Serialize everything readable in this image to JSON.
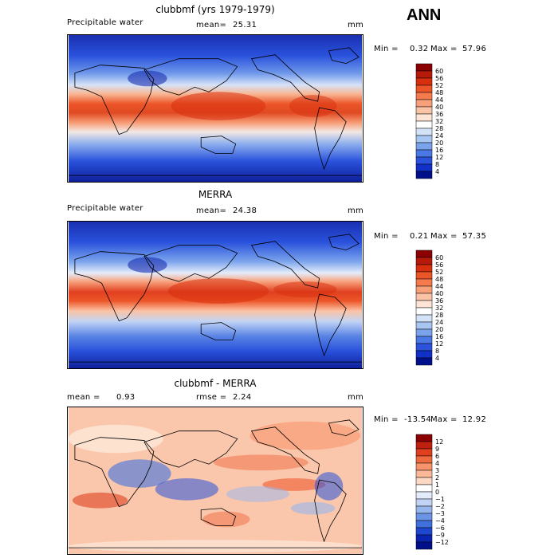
{
  "season": "ANN",
  "panels": [
    {
      "title": "clubbmf (yrs 1979-1979)",
      "left_label": "Precipitable water",
      "mean_label": "mean=",
      "mean_value": "25.31",
      "units": "mm",
      "min_label": "Min =",
      "min_value": "0.32",
      "max_label": "Max =",
      "max_value": "57.96",
      "kind": "abs"
    },
    {
      "title": "MERRA",
      "left_label": "Precipitable water",
      "mean_label": "mean=",
      "mean_value": "24.38",
      "units": "mm",
      "min_label": "Min =",
      "min_value": "0.21",
      "max_label": "Max =",
      "max_value": "57.35",
      "kind": "abs"
    },
    {
      "title": "clubbmf - MERRA",
      "left_label": "mean =",
      "mean_label": "rmse =",
      "mean_value": "2.24",
      "left_value": "0.93",
      "units": "mm",
      "min_label": "Min =",
      "min_value": "-13.54",
      "max_label": "Max =",
      "max_value": "12.92",
      "kind": "diff"
    }
  ],
  "colorbars": {
    "abs": {
      "levels": [
        "60",
        "56",
        "52",
        "48",
        "44",
        "40",
        "36",
        "32",
        "28",
        "24",
        "20",
        "16",
        "12",
        "8",
        "4"
      ],
      "colors": [
        "#8b0000",
        "#b81a0a",
        "#d8300f",
        "#ec5528",
        "#f57a4c",
        "#f8a07a",
        "#fbc3a6",
        "#fde4d4",
        "#ffffff",
        "#d4e2f8",
        "#a8c6f2",
        "#7aa3ec",
        "#4a78e4",
        "#2a52dc",
        "#1030c8",
        "#00108a"
      ]
    },
    "diff": {
      "levels": [
        "12",
        "9",
        "6",
        "4",
        "3",
        "2",
        "1",
        "0",
        "−1",
        "−2",
        "−3",
        "−4",
        "−6",
        "−9",
        "−12"
      ],
      "colors": [
        "#8b0000",
        "#c0200e",
        "#e04020",
        "#f06a40",
        "#f8946c",
        "#fbb898",
        "#fdd8c4",
        "#ffffff",
        "#e4ecfb",
        "#c2d4f5",
        "#98b6ee",
        "#6c94e6",
        "#4070de",
        "#1e48d2",
        "#0a24b0",
        "#00108a"
      ]
    }
  }
}
